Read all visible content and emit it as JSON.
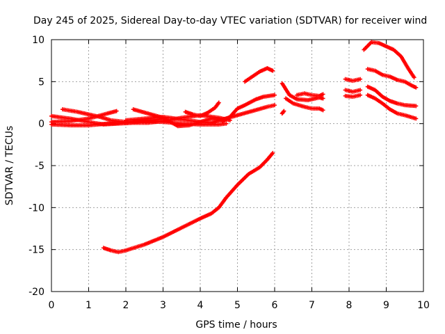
{
  "chart_data": {
    "type": "scatter",
    "title": "Day 245 of 2025, Sidereal Day-to-day VTEC variation (SDTVAR) for receiver wind",
    "xlabel": "GPS time / hours",
    "ylabel": "SDTVAR / TECUs",
    "xlim": [
      0,
      10
    ],
    "ylim": [
      -20,
      10
    ],
    "x_ticks": [
      "0",
      "1",
      "2",
      "3",
      "4",
      "5",
      "6",
      "7",
      "8",
      "9",
      "10"
    ],
    "y_ticks": [
      "10",
      "5",
      "0",
      "-5",
      "-10",
      "-15",
      "-20"
    ],
    "grid": true,
    "marker": "+",
    "marker_color": "#ff0000",
    "series": [
      {
        "x": [
          0.0,
          0.5,
          1.0,
          1.5,
          1.75
        ],
        "y": [
          0.2,
          0.3,
          0.6,
          1.2,
          1.5
        ]
      },
      {
        "x": [
          0.0,
          0.5,
          1.0,
          1.5,
          2.0,
          2.5,
          3.0,
          3.5,
          4.0,
          4.5,
          4.7
        ],
        "y": [
          -0.1,
          -0.2,
          -0.2,
          0.0,
          0.1,
          0.3,
          0.2,
          0.0,
          -0.1,
          -0.1,
          0.0
        ]
      },
      {
        "x": [
          0.3,
          0.7,
          1.0,
          1.3,
          1.6,
          2.0,
          2.4,
          2.7,
          3.0
        ],
        "y": [
          1.7,
          1.4,
          1.1,
          0.8,
          0.4,
          0.2,
          0.3,
          0.4,
          0.6
        ]
      },
      {
        "x": [
          0.0,
          0.5,
          1.0,
          1.4,
          1.8,
          2.2,
          2.6,
          3.0,
          3.5,
          4.0,
          4.5,
          4.8
        ],
        "y": [
          0.9,
          0.6,
          0.2,
          -0.1,
          0.0,
          0.1,
          0.1,
          0.3,
          0.7,
          1.0,
          0.7,
          0.4
        ]
      },
      {
        "x": [
          2.2,
          2.6,
          3.0,
          3.2,
          3.4,
          3.7,
          4.0,
          4.3,
          4.6
        ],
        "y": [
          1.7,
          1.2,
          0.7,
          0.2,
          -0.3,
          -0.2,
          0.2,
          0.6,
          0.4
        ]
      },
      {
        "x": [
          3.6,
          3.8,
          4.0,
          4.2,
          4.4,
          4.5
        ],
        "y": [
          1.4,
          1.1,
          0.9,
          1.3,
          1.9,
          2.5
        ]
      },
      {
        "x": [
          2.0,
          2.5,
          3.0,
          3.5,
          4.0,
          4.3,
          4.6,
          5.0,
          5.4,
          5.8,
          6.0
        ],
        "y": [
          0.4,
          0.6,
          0.8,
          0.5,
          0.2,
          0.1,
          0.5,
          1.0,
          1.5,
          2.0,
          2.2
        ]
      },
      {
        "x": [
          4.6,
          4.8,
          5.0,
          5.2,
          5.5,
          5.7,
          6.0
        ],
        "y": [
          0.3,
          0.8,
          1.8,
          2.2,
          2.9,
          3.2,
          3.4
        ]
      },
      {
        "x": [
          5.2,
          5.4,
          5.6,
          5.8,
          5.95
        ],
        "y": [
          5.0,
          5.6,
          6.2,
          6.6,
          6.3
        ]
      },
      {
        "x": [
          6.2,
          6.4,
          6.6,
          6.9,
          7.2,
          7.3
        ],
        "y": [
          4.8,
          3.4,
          2.9,
          2.8,
          3.1,
          3.0
        ]
      },
      {
        "x": [
          6.3,
          6.5,
          6.8,
          7.0,
          7.2,
          7.3
        ],
        "y": [
          3.0,
          2.4,
          2.0,
          1.8,
          1.8,
          1.6
        ]
      },
      {
        "x": [
          6.6,
          6.8,
          7.0,
          7.2,
          7.3
        ],
        "y": [
          3.4,
          3.6,
          3.4,
          3.3,
          3.5
        ]
      },
      {
        "x": [
          6.2,
          6.25
        ],
        "y": [
          1.2,
          1.5
        ]
      },
      {
        "x": [
          7.9,
          8.1,
          8.3
        ],
        "y": [
          5.3,
          5.1,
          5.3
        ]
      },
      {
        "x": [
          7.9,
          8.1,
          8.3
        ],
        "y": [
          4.0,
          3.8,
          4.0
        ]
      },
      {
        "x": [
          7.9,
          8.1,
          8.3
        ],
        "y": [
          3.3,
          3.2,
          3.4
        ]
      },
      {
        "x": [
          8.4,
          8.6,
          8.8,
          9.0,
          9.2,
          9.4,
          9.6,
          9.75
        ],
        "y": [
          8.8,
          9.7,
          9.6,
          9.2,
          8.8,
          8.0,
          6.5,
          5.5
        ]
      },
      {
        "x": [
          8.5,
          8.7,
          8.9,
          9.1,
          9.3,
          9.5,
          9.7,
          9.8
        ],
        "y": [
          6.5,
          6.3,
          5.8,
          5.6,
          5.2,
          5.0,
          4.5,
          4.3
        ]
      },
      {
        "x": [
          8.5,
          8.7,
          8.9,
          9.1,
          9.3,
          9.5,
          9.8
        ],
        "y": [
          4.4,
          4.0,
          3.2,
          2.7,
          2.4,
          2.2,
          2.1
        ]
      },
      {
        "x": [
          8.5,
          8.7,
          8.9,
          9.1,
          9.3,
          9.5,
          9.8
        ],
        "y": [
          3.4,
          3.0,
          2.4,
          1.7,
          1.2,
          1.0,
          0.6
        ]
      },
      {
        "x": [
          1.4,
          1.6,
          1.8,
          2.0,
          2.5,
          3.0,
          3.5,
          4.0,
          4.3,
          4.5,
          4.7,
          5.0,
          5.3,
          5.6,
          5.8,
          5.95
        ],
        "y": [
          -14.8,
          -15.1,
          -15.3,
          -15.1,
          -14.4,
          -13.5,
          -12.4,
          -11.3,
          -10.7,
          -10.0,
          -8.8,
          -7.3,
          -6.0,
          -5.2,
          -4.3,
          -3.5
        ]
      }
    ]
  }
}
